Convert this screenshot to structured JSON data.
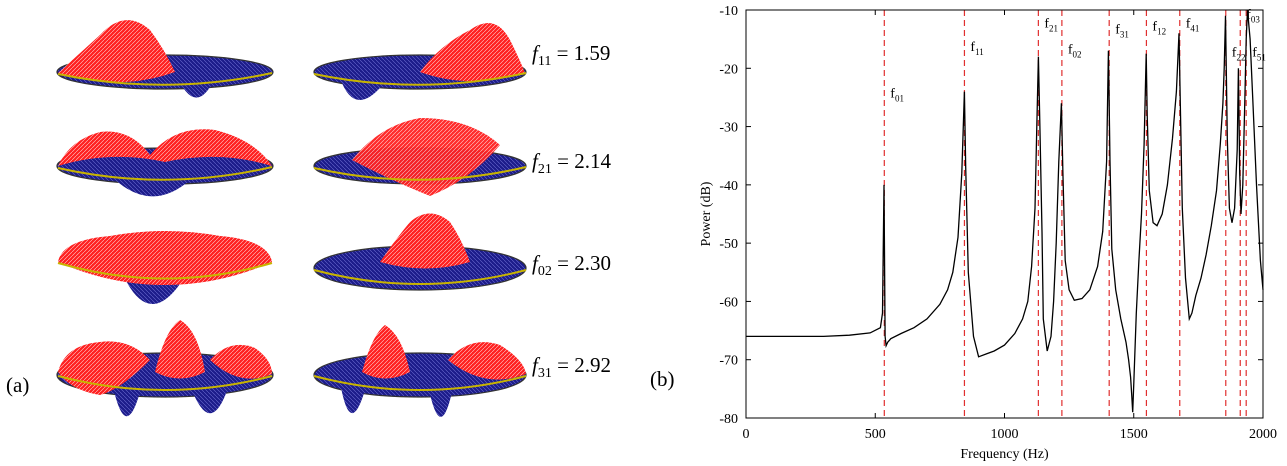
{
  "panel_a": {
    "label": "(a)",
    "modes": [
      {
        "mode_sub": "11",
        "value": "1.59"
      },
      {
        "mode_sub": "21",
        "value": "2.14"
      },
      {
        "mode_sub": "02",
        "value": "2.30"
      },
      {
        "mode_sub": "31",
        "value": "2.92"
      }
    ],
    "colors": {
      "positive": "#ff1a1a",
      "negative": "#1a1a8c",
      "rim": "#c8b400"
    }
  },
  "panel_b": {
    "label": "(b)"
  },
  "chart_data": {
    "type": "line",
    "xlabel": "Frequency (Hz)",
    "ylabel": "Power (dB)",
    "xlim": [
      0,
      2000
    ],
    "ylim": [
      -80,
      -10
    ],
    "xticks": [
      0,
      500,
      1000,
      1500,
      2000
    ],
    "yticks": [
      -10,
      -20,
      -30,
      -40,
      -50,
      -60,
      -70,
      -80
    ],
    "grid": false,
    "line_color": "#000000",
    "marker_color": "#e03030",
    "x": [
      0,
      100,
      200,
      300,
      400,
      480,
      520,
      528,
      534,
      538,
      542,
      548,
      560,
      600,
      650,
      700,
      750,
      780,
      800,
      820,
      835,
      845,
      850,
      860,
      880,
      900,
      930,
      960,
      1000,
      1040,
      1070,
      1090,
      1105,
      1118,
      1125,
      1131,
      1137,
      1145,
      1150,
      1165,
      1180,
      1190,
      1200,
      1210,
      1220,
      1226,
      1235,
      1250,
      1270,
      1300,
      1330,
      1360,
      1380,
      1395,
      1402,
      1408,
      1415,
      1430,
      1450,
      1470,
      1480,
      1488,
      1492,
      1496,
      1500,
      1510,
      1520,
      1530,
      1540,
      1548,
      1552,
      1560,
      1575,
      1590,
      1610,
      1630,
      1650,
      1665,
      1675,
      1680,
      1688,
      1700,
      1715,
      1725,
      1740,
      1760,
      1780,
      1800,
      1820,
      1835,
      1845,
      1850,
      1855,
      1862,
      1870,
      1880,
      1890,
      1900,
      1905,
      1910,
      1915,
      1922,
      1930,
      1935,
      1940,
      1950,
      1960,
      1975,
      1990,
      2000
    ],
    "y": [
      -66,
      -66,
      -66,
      -66,
      -65.8,
      -65.4,
      -64.5,
      -62,
      -40,
      -66,
      -67.6,
      -67,
      -66.4,
      -65.5,
      -64.5,
      -63,
      -60.5,
      -58,
      -55,
      -49,
      -38,
      -24,
      -37,
      -55,
      -66,
      -69.5,
      -69,
      -68.5,
      -67.5,
      -65.5,
      -63,
      -60,
      -54,
      -44,
      -30,
      -18,
      -30,
      -48,
      -63,
      -68.5,
      -66,
      -60,
      -50,
      -36,
      -26,
      -38,
      -53,
      -58,
      -59.8,
      -59.5,
      -58,
      -54,
      -48,
      -36,
      -17,
      -36,
      -51,
      -58,
      -63,
      -67,
      -70,
      -73,
      -76,
      -79,
      -74,
      -62,
      -53,
      -45,
      -33,
      -17.5,
      -28,
      -41,
      -46.5,
      -47,
      -45,
      -40,
      -32,
      -24,
      -14,
      -26,
      -44,
      -56,
      -63,
      -62,
      -59,
      -56,
      -52,
      -47,
      -41,
      -33,
      -26,
      -20,
      -11,
      -32,
      -44,
      -46.5,
      -44,
      -34,
      -20,
      -38,
      -45,
      -40,
      -25,
      -15,
      -10,
      -15,
      -25,
      -40,
      -53,
      -58
    ],
    "peaks": [
      {
        "label": "f",
        "sub": "01",
        "x": 535,
        "ly": -25
      },
      {
        "label": "f",
        "sub": "11",
        "x": 845,
        "ly": -17
      },
      {
        "label": "f",
        "sub": "21",
        "x": 1131,
        "ly": -13
      },
      {
        "label": "f",
        "sub": "02",
        "x": 1222,
        "ly": -17.5
      },
      {
        "label": "f",
        "sub": "31",
        "x": 1405,
        "ly": -14
      },
      {
        "label": "f",
        "sub": "12",
        "x": 1549,
        "ly": -13.5
      },
      {
        "label": "f",
        "sub": "41",
        "x": 1678,
        "ly": -13
      },
      {
        "label": "f",
        "sub": "22",
        "x": 1856,
        "ly": -18
      },
      {
        "label": "f",
        "sub": "03",
        "x": 1912,
        "ly": -11.5
      },
      {
        "label": "f",
        "sub": "51",
        "x": 1935,
        "ly": -18
      }
    ]
  }
}
